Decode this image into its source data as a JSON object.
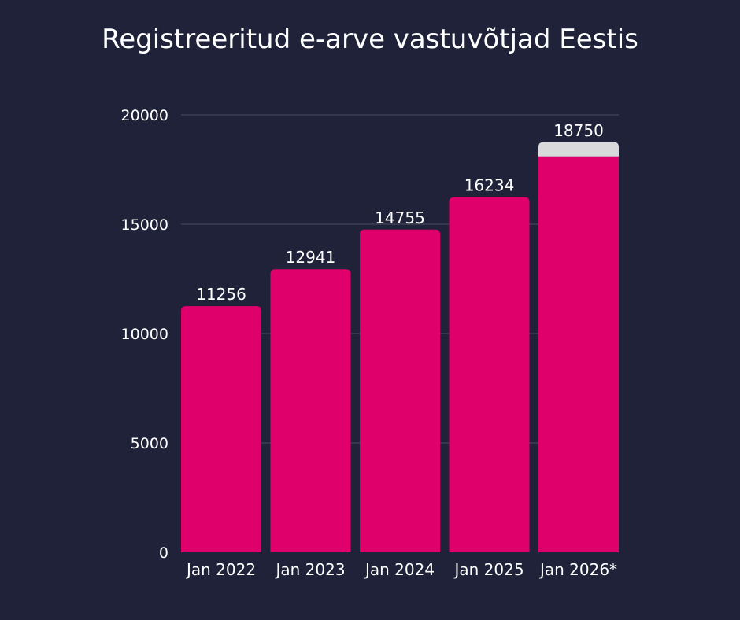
{
  "colors": {
    "background": "#1f2239",
    "bar": "#e0006b",
    "bar_top_highlight": "#d9d9dc",
    "gridline": "#4a4d63",
    "text": "#ffffff"
  },
  "chart_data": {
    "type": "bar",
    "title": "Registreeritud e-arve vastuvõtjad Eestis",
    "categories": [
      "Jan 2022",
      "Jan 2023",
      "Jan 2024",
      "Jan 2025",
      "Jan 2026*"
    ],
    "values": [
      11256,
      12941,
      14755,
      16234,
      18750
    ],
    "data_labels": [
      "11256",
      "12941",
      "14755",
      "16234",
      "18750"
    ],
    "ylim": [
      0,
      20000
    ],
    "yticks": [
      0,
      5000,
      10000,
      15000,
      20000
    ],
    "grid": true,
    "legend": "none",
    "last_bar_highlight_from": 18100
  }
}
